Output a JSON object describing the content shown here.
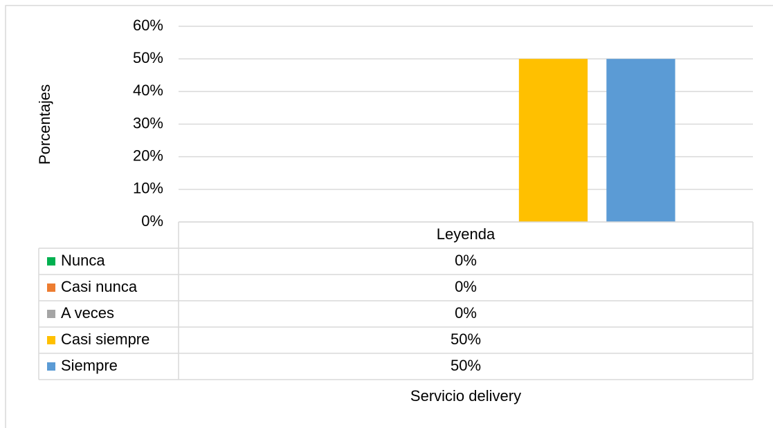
{
  "chart_data": {
    "type": "bar",
    "categories": [
      "Leyenda"
    ],
    "series": [
      {
        "name": "Nunca",
        "color": "#00b050",
        "values": [
          0
        ],
        "value_labels": [
          "0%"
        ]
      },
      {
        "name": "Casi nunca",
        "color": "#ed7d31",
        "values": [
          0
        ],
        "value_labels": [
          "0%"
        ]
      },
      {
        "name": "A veces",
        "color": "#a5a5a5",
        "values": [
          0
        ],
        "value_labels": [
          "0%"
        ]
      },
      {
        "name": "Casi siempre",
        "color": "#ffc000",
        "values": [
          50
        ],
        "value_labels": [
          "50%"
        ]
      },
      {
        "name": "Siempre",
        "color": "#5b9bd5",
        "values": [
          50
        ],
        "value_labels": [
          "50%"
        ]
      }
    ],
    "ylim": [
      0,
      60
    ],
    "yticks": [
      {
        "value": 0,
        "label": "0%"
      },
      {
        "value": 10,
        "label": "10%"
      },
      {
        "value": 20,
        "label": "20%"
      },
      {
        "value": 30,
        "label": "30%"
      },
      {
        "value": 40,
        "label": "40%"
      },
      {
        "value": 50,
        "label": "50%"
      },
      {
        "value": 60,
        "label": "60%"
      }
    ],
    "grid": true,
    "xlabel": "Servicio delivery",
    "ylabel": "Porcentajes"
  }
}
